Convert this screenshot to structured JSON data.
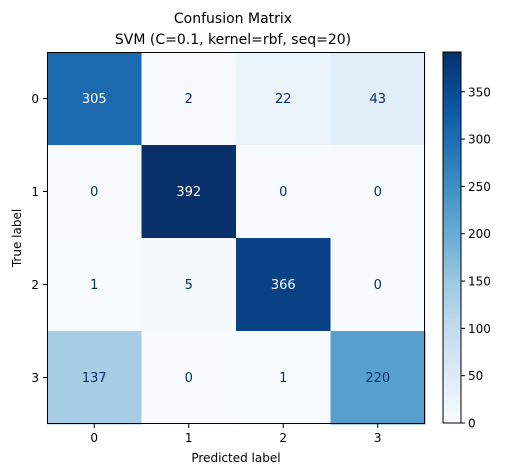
{
  "chart_data": {
    "type": "heatmap",
    "title": "Confusion Matrix",
    "subtitle": "SVM (C=0.1, kernel=rbf, seq=20)",
    "xlabel": "Predicted label",
    "ylabel": "True label",
    "x_categories": [
      "0",
      "1",
      "2",
      "3"
    ],
    "y_categories": [
      "0",
      "1",
      "2",
      "3"
    ],
    "matrix": [
      [
        305,
        2,
        22,
        43
      ],
      [
        0,
        392,
        0,
        0
      ],
      [
        1,
        5,
        366,
        0
      ],
      [
        137,
        0,
        1,
        220
      ]
    ],
    "colorscale": "Blues",
    "color_range": [
      0,
      392
    ],
    "colorbar_ticks": [
      "0",
      "50",
      "100",
      "150",
      "200",
      "250",
      "300",
      "350"
    ],
    "colorbar_tick_values": [
      0,
      50,
      100,
      150,
      200,
      250,
      300,
      350
    ]
  }
}
